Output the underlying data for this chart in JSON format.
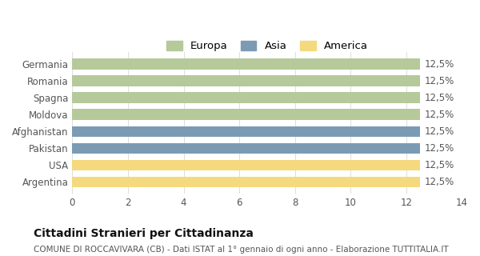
{
  "categories": [
    "Germania",
    "Romania",
    "Spagna",
    "Moldova",
    "Afghanistan",
    "Pakistan",
    "USA",
    "Argentina"
  ],
  "values": [
    12.5,
    12.5,
    12.5,
    12.5,
    12.5,
    12.5,
    12.5,
    12.5
  ],
  "bar_colors": [
    "#b5c99a",
    "#b5c99a",
    "#b5c99a",
    "#b5c99a",
    "#7b9bb5",
    "#7b9bb5",
    "#f5d97e",
    "#f5d97e"
  ],
  "legend_labels": [
    "Europa",
    "Asia",
    "America"
  ],
  "legend_colors": [
    "#b5c99a",
    "#7b9bb5",
    "#f5d97e"
  ],
  "label_text": "12,5%",
  "xlim": [
    0,
    14
  ],
  "xticks": [
    0,
    2,
    4,
    6,
    8,
    10,
    12,
    14
  ],
  "title": "Cittadini Stranieri per Cittadinanza",
  "subtitle": "COMUNE DI ROCCAVIVARA (CB) - Dati ISTAT al 1° gennaio di ogni anno - Elaborazione TUTTITALIA.IT",
  "title_fontsize": 10,
  "subtitle_fontsize": 7.5,
  "background_color": "#ffffff",
  "bar_value_fontsize": 8.5,
  "tick_fontsize": 8.5,
  "legend_fontsize": 9.5
}
